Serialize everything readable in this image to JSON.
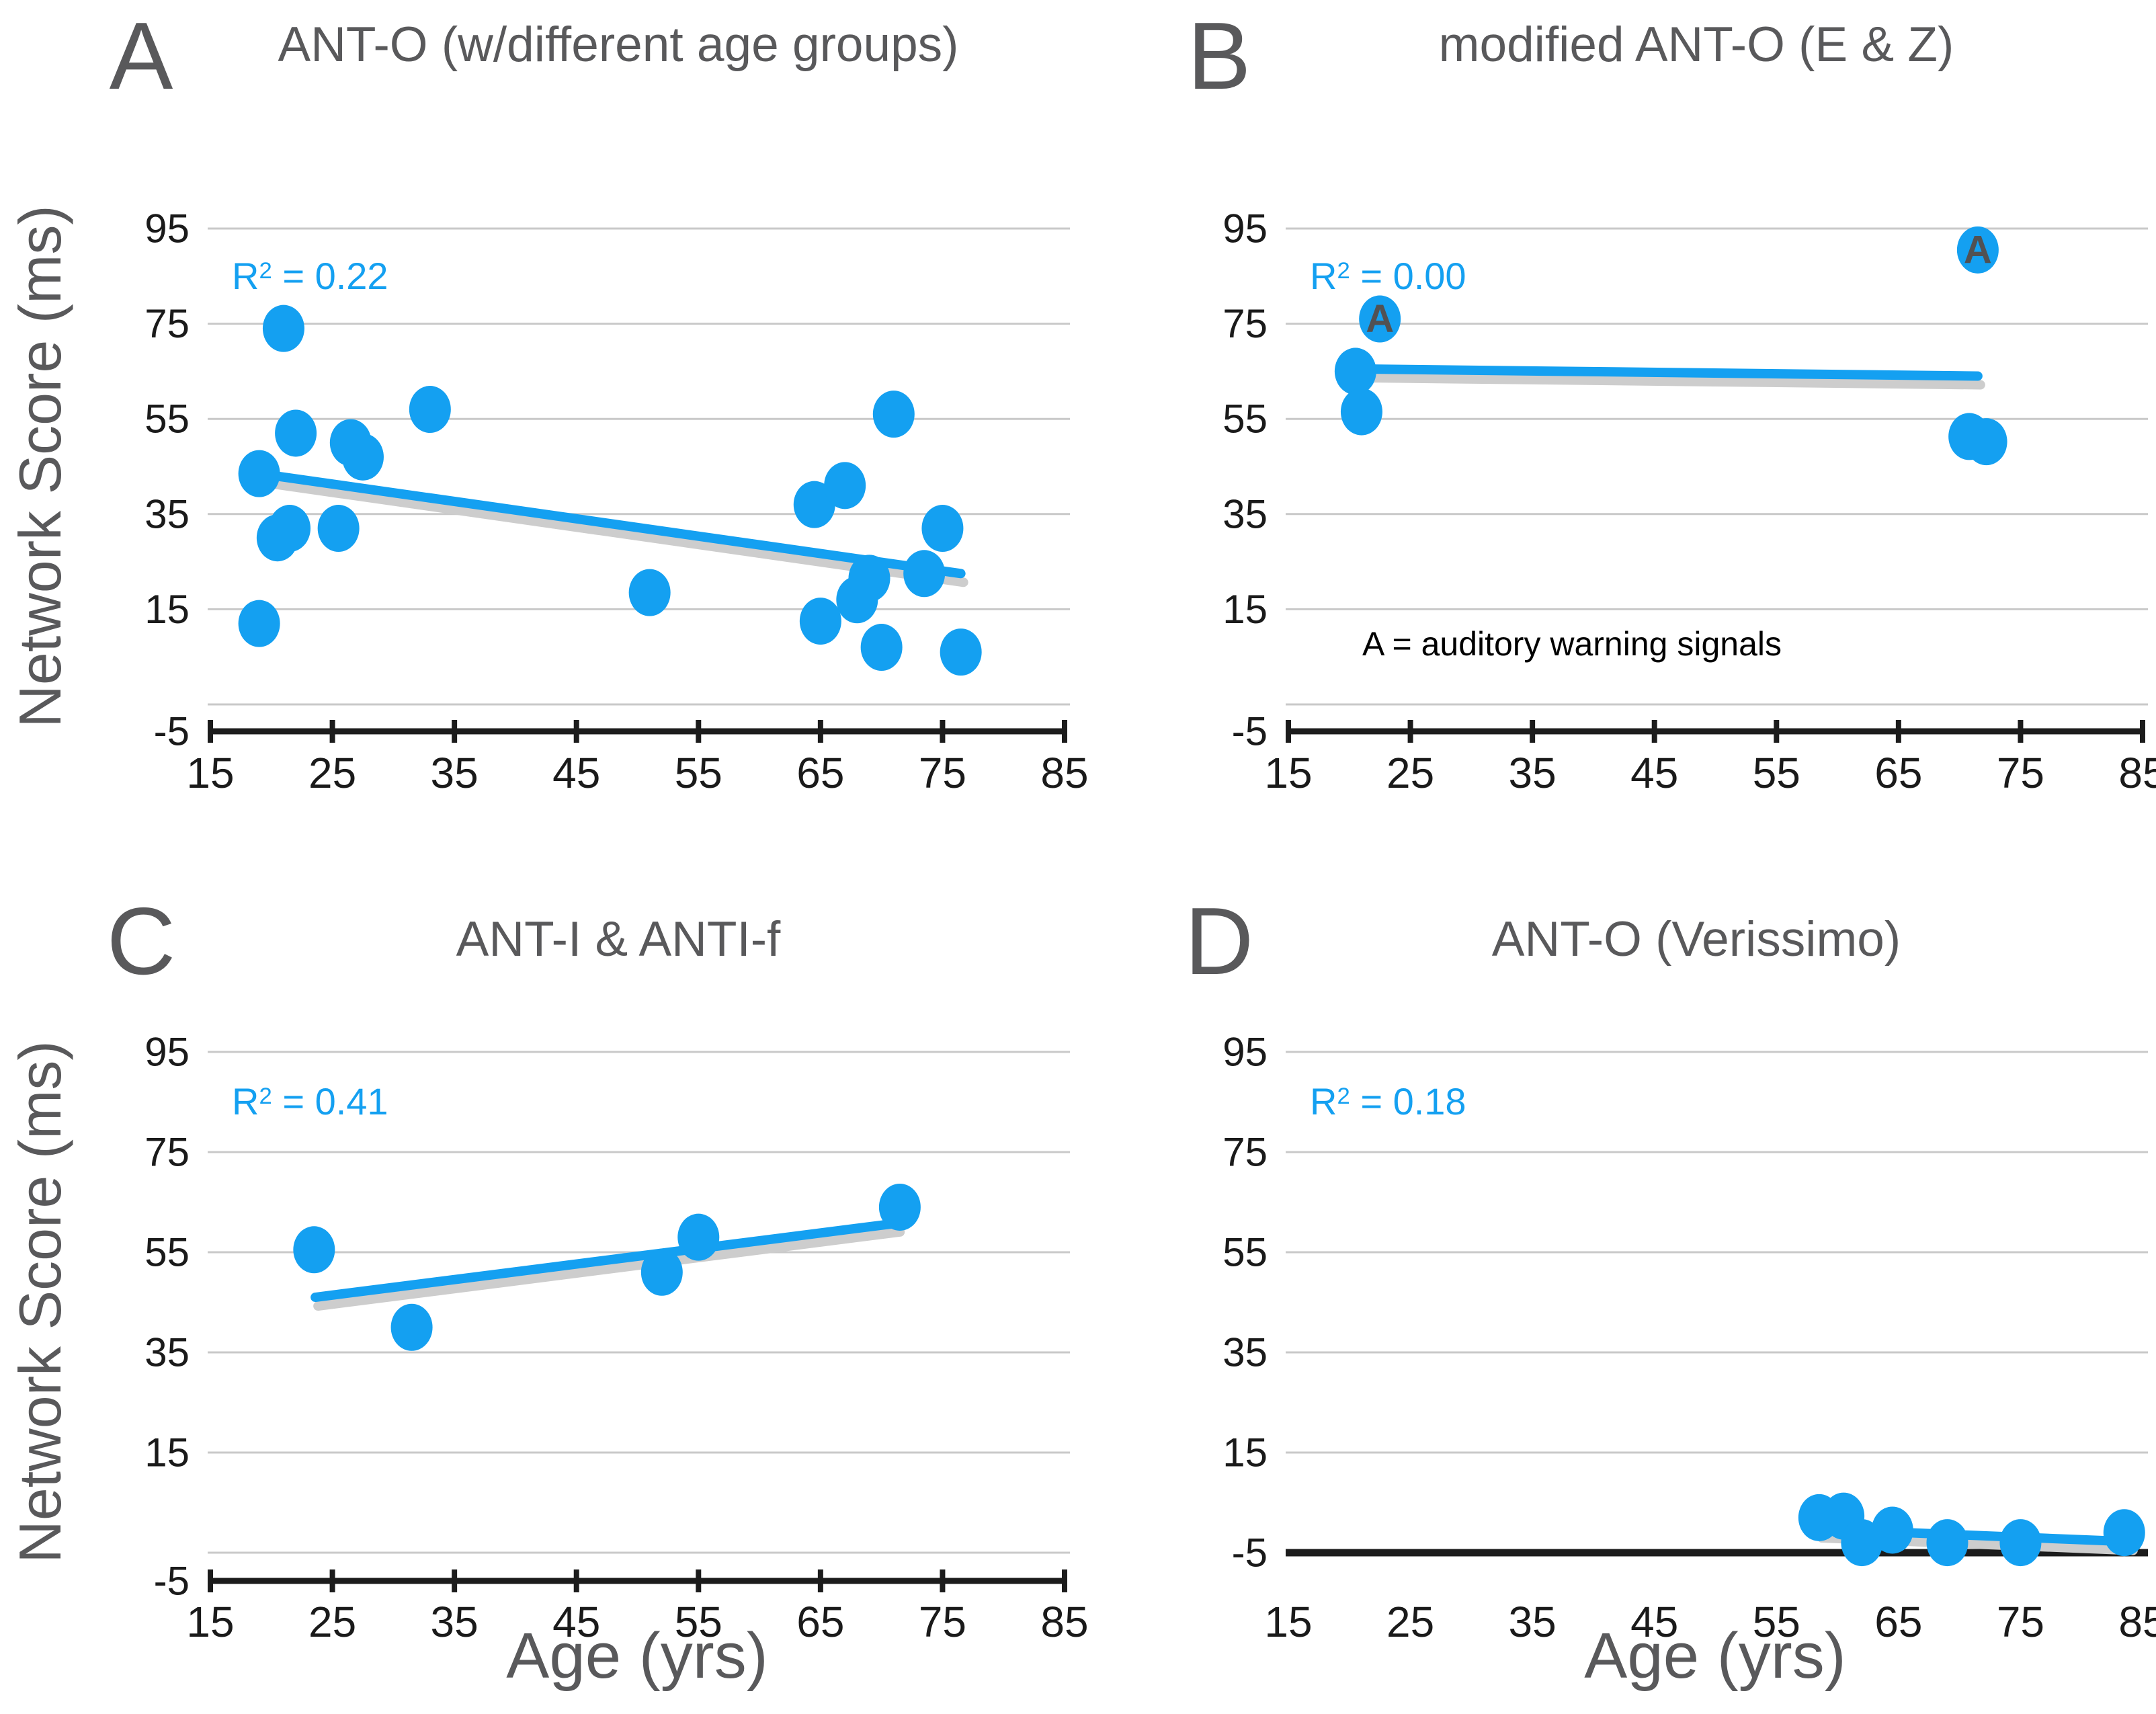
{
  "figure": {
    "background": "#FFFFFF",
    "description": "Four scatter plots (A-D) of attention Network Score (ms) versus Age (yrs) for different ANT task variants, each with a blue linear trend line and R-squared value."
  },
  "axis_labels": {
    "y": "Network Score (ms)",
    "x": "Age (yrs)"
  },
  "colors": {
    "dot_blue": "#14A0F1",
    "trend_blue": "#14A0F1",
    "trend_shadow": "#CDCDCD",
    "gridline": "#C9C9C9",
    "axis_black": "#1C1C1C",
    "tick_label": "#1A1A1A",
    "title_gray": "#59595B",
    "r2_blue": "#14A0F1",
    "dot_letter_gray": "#515153"
  },
  "axes": {
    "x_range": [
      15,
      85
    ],
    "y_range": [
      -5,
      95
    ],
    "x_ticks": [
      15,
      25,
      35,
      45,
      55,
      65,
      75,
      85
    ],
    "y_gridlines": [
      95,
      75,
      55,
      35,
      15,
      -5
    ],
    "grid": "horizontal-only"
  },
  "chart_data": [
    {
      "type": "scatter",
      "letter": "A",
      "title": "ANT-O (w/different age groups)",
      "r2": {
        "base": "R",
        "sup": "2",
        "rest": " = 0.22"
      },
      "xlabel": "Age (yrs)",
      "ylabel": "Network Score (ms)",
      "axis_style": "ticks",
      "points": [
        {
          "x": 19,
          "y": 43.5
        },
        {
          "x": 19,
          "y": 12
        },
        {
          "x": 20.5,
          "y": 30
        },
        {
          "x": 21.5,
          "y": 32
        },
        {
          "x": 21,
          "y": 74
        },
        {
          "x": 22,
          "y": 52
        },
        {
          "x": 25.5,
          "y": 32
        },
        {
          "x": 26.5,
          "y": 50
        },
        {
          "x": 27.5,
          "y": 47
        },
        {
          "x": 33,
          "y": 57
        },
        {
          "x": 51,
          "y": 18.5
        },
        {
          "x": 64.5,
          "y": 37
        },
        {
          "x": 67,
          "y": 41
        },
        {
          "x": 71,
          "y": 56
        },
        {
          "x": 65,
          "y": 12.5
        },
        {
          "x": 68,
          "y": 17
        },
        {
          "x": 69,
          "y": 21.5
        },
        {
          "x": 73.5,
          "y": 22.5
        },
        {
          "x": 75,
          "y": 32
        },
        {
          "x": 70,
          "y": 7
        },
        {
          "x": 76.5,
          "y": 6
        }
      ],
      "trend": {
        "x1": 19,
        "y1": 43.5,
        "x2": 76.5,
        "y2": 22.5
      }
    },
    {
      "type": "scatter",
      "letter": "B",
      "title": "modified ANT-O (E & Z)",
      "r2": {
        "base": "R",
        "sup": "2",
        "rest": " = 0.00"
      },
      "xlabel": "Age (yrs)",
      "ylabel": "Network Score (ms)",
      "axis_style": "ticks",
      "annotation": {
        "text": "A = auditory warning signals",
        "x": 38,
        "y": 7
      },
      "points": [
        {
          "x": 20.5,
          "y": 65
        },
        {
          "x": 21,
          "y": 56.5
        },
        {
          "x": 22.5,
          "y": 76,
          "label": "A"
        },
        {
          "x": 71.5,
          "y": 90.5,
          "label": "A"
        },
        {
          "x": 70.8,
          "y": 51.3
        },
        {
          "x": 72.2,
          "y": 50.2
        }
      ],
      "trend": {
        "x1": 20.5,
        "y1": 65.5,
        "x2": 71.5,
        "y2": 64
      }
    },
    {
      "type": "scatter",
      "letter": "C",
      "title": "ANT-I & ANTI-f",
      "r2": {
        "base": "R",
        "sup": "2",
        "rest": " = 0.41"
      },
      "xlabel": "Age (yrs)",
      "ylabel": "Network Score (ms)",
      "axis_style": "ticks",
      "points": [
        {
          "x": 23.5,
          "y": 55.5
        },
        {
          "x": 31.5,
          "y": 40
        },
        {
          "x": 52,
          "y": 51
        },
        {
          "x": 55,
          "y": 58
        },
        {
          "x": 71.5,
          "y": 64
        }
      ],
      "trend": {
        "x1": 23.6,
        "y1": 46,
        "x2": 71.3,
        "y2": 60.8
      }
    },
    {
      "type": "scatter",
      "letter": "D",
      "title": "ANT-O (Verissimo)",
      "r2": {
        "base": "R",
        "sup": "2",
        "rest": " = 0.18"
      },
      "xlabel": "Age (yrs)",
      "ylabel": "Network Score (ms)",
      "axis_style": "baseline",
      "points": [
        {
          "x": 58.5,
          "y": 2
        },
        {
          "x": 60.5,
          "y": 2.3
        },
        {
          "x": 62,
          "y": -3
        },
        {
          "x": 64.5,
          "y": -0.5
        },
        {
          "x": 69,
          "y": -3
        },
        {
          "x": 75,
          "y": -3
        },
        {
          "x": 83.5,
          "y": -1
        }
      ],
      "trend": {
        "x1": 58.5,
        "y1": -0.3,
        "x2": 84,
        "y2": -2.8
      }
    }
  ]
}
